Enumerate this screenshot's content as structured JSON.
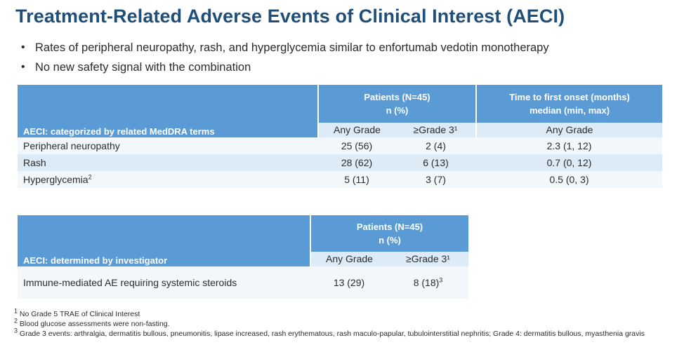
{
  "title": "Treatment-Related Adverse Events of Clinical Interest (AECI)",
  "bullets": [
    "Rates of peripheral neuropathy, rash, and hyperglycemia similar to enfortumab vedotin monotherapy",
    "No new safety signal with the combination"
  ],
  "table1": {
    "patients_header_line1": "Patients (N=45)",
    "patients_header_line2": "n (%)",
    "onset_header_line1": "Time to first onset (months)",
    "onset_header_line2": "median (min, max)",
    "row_label_header": "AECI: categorized by related MedDRA terms",
    "col_any_grade": "Any Grade",
    "col_grade3": "≥Grade 3¹",
    "col_onset_any": "Any Grade",
    "rows": [
      {
        "label": "Peripheral neuropathy",
        "sup": "",
        "any": "25 (56)",
        "g3": "2 (4)",
        "onset": "2.3 (1, 12)"
      },
      {
        "label": "Rash",
        "sup": "",
        "any": "28 (62)",
        "g3": "6 (13)",
        "onset": "0.7 (0, 12)"
      },
      {
        "label": "Hyperglycemia",
        "sup": "2",
        "any": "5 (11)",
        "g3": "3 (7)",
        "onset": "0.5 (0, 3)"
      }
    ]
  },
  "table2": {
    "patients_header_line1": "Patients (N=45)",
    "patients_header_line2": "n (%)",
    "row_label_header": "AECI: determined by investigator",
    "col_any_grade": "Any Grade",
    "col_grade3": "≥Grade 3¹",
    "row": {
      "label": "Immune-mediated AE requiring systemic steroids",
      "any": "13 (29)",
      "g3": "8 (18)",
      "g3_sup": "3"
    }
  },
  "footnotes": [
    {
      "marker": "1",
      "text": " No Grade 5 TRAE of Clinical Interest"
    },
    {
      "marker": "2",
      "text": " Blood glucose assessments were non-fasting."
    },
    {
      "marker": "3",
      "text": " Grade 3 events: arthralgia, dermatitis bullous, pneumonitis, lipase increased, rash erythematous, rash maculo-papular,  tubulointerstitial nephritis; Grade 4: dermatitis bullous, myasthenia gravis"
    }
  ],
  "colors": {
    "title": "#1f4e79",
    "header_bg": "#5b9bd5",
    "row_dark": "#ddebf7",
    "row_light": "#f2f7fc"
  }
}
